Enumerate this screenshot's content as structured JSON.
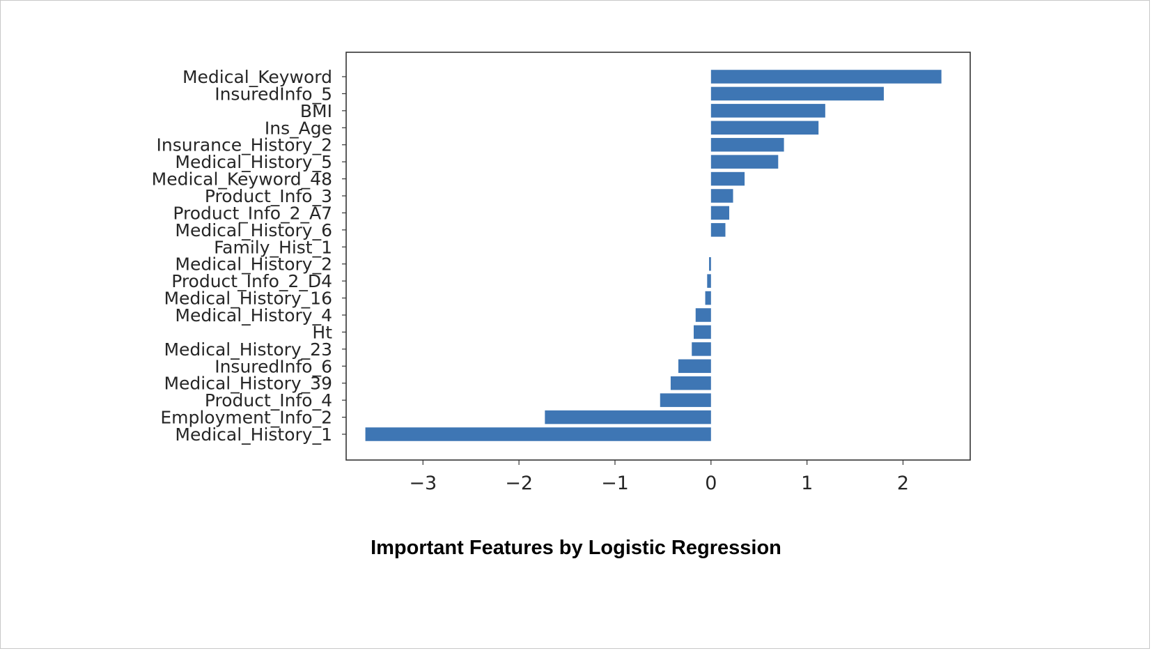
{
  "caption": "Important Features by Logistic Regression",
  "chart_data": {
    "type": "bar",
    "orientation": "horizontal",
    "bar_color": "#3e76b4",
    "categories": [
      "Medical_Keyword",
      "InsuredInfo_5",
      "BMI",
      "Ins_Age",
      "Insurance_History_2",
      "Medical_History_5",
      "Medical_Keyword_48",
      "Product_Info_3",
      "Product_Info_2_A7",
      "Medical_History_6",
      "Family_Hist_1",
      "Medical_History_2",
      "Product_Info_2_D4",
      "Medical_History_16",
      "Medical_History_4",
      "Ht",
      "Medical_History_23",
      "InsuredInfo_6",
      "Medical_History_39",
      "Product_Info_4",
      "Employment_Info_2",
      "Medical_History_1"
    ],
    "values": [
      2.4,
      1.8,
      1.19,
      1.12,
      0.76,
      0.7,
      0.35,
      0.23,
      0.19,
      0.15,
      0.0,
      -0.02,
      -0.04,
      -0.06,
      -0.16,
      -0.18,
      -0.2,
      -0.34,
      -0.42,
      -0.53,
      -1.73,
      -3.6
    ],
    "xlim": [
      -3.8,
      2.7
    ],
    "xticks": [
      -3,
      -2,
      -1,
      0,
      1,
      2
    ],
    "xtick_labels": [
      "−3",
      "−2",
      "−1",
      "0",
      "1",
      "2"
    ],
    "grid": false,
    "title": "",
    "xlabel": "",
    "ylabel": ""
  }
}
